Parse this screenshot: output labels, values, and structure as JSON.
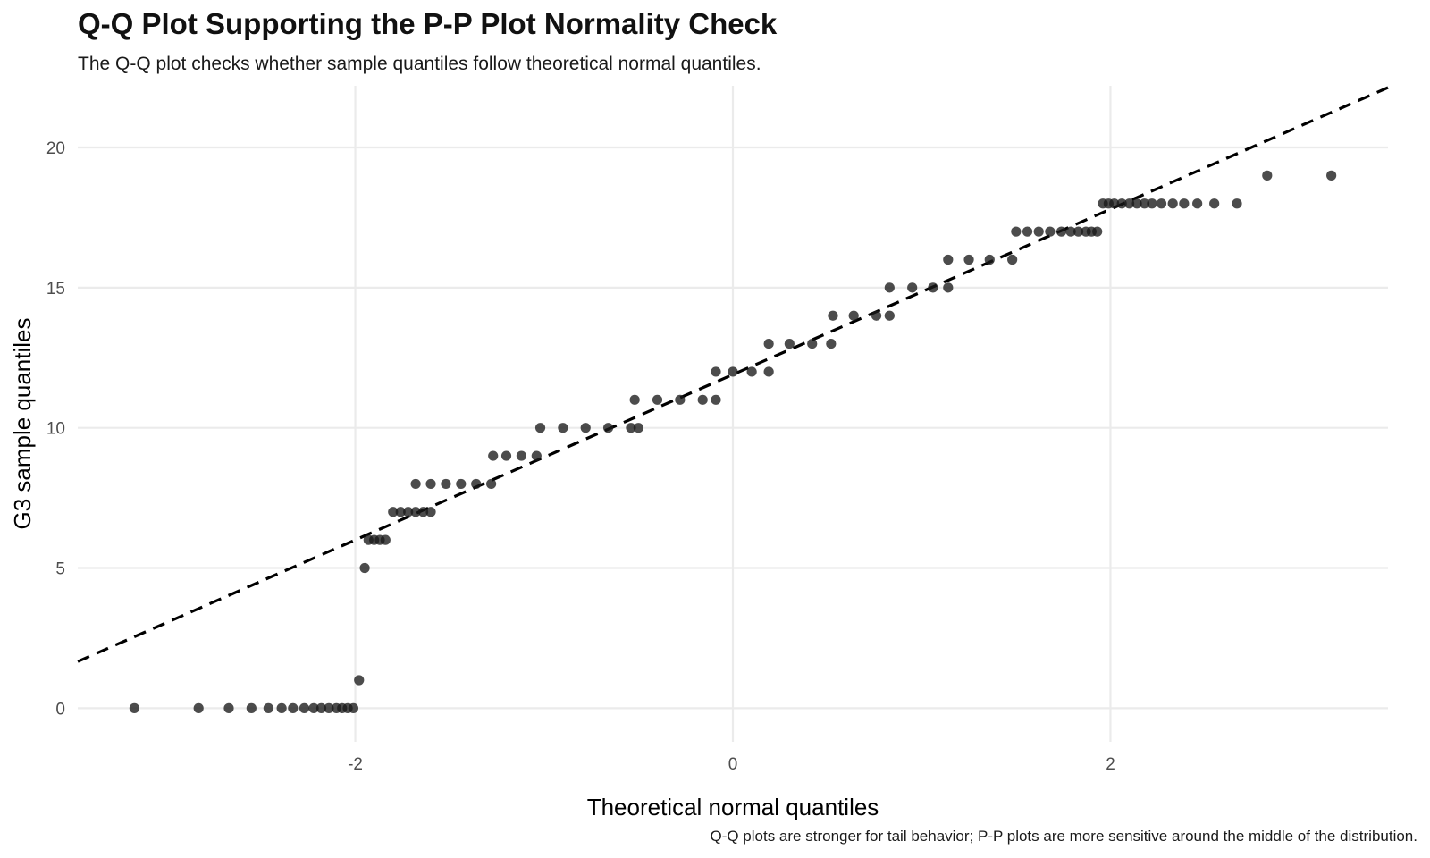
{
  "chart_data": {
    "type": "scatter",
    "title": "Q-Q Plot Supporting the P-P Plot Normality Check",
    "subtitle": "The Q-Q plot checks whether sample quantiles follow theoretical normal quantiles.",
    "caption": "Q-Q plots are stronger for tail behavior; P-P plots are more sensitive around the middle of the distribution.",
    "xlabel": "Theoretical normal quantiles",
    "ylabel": "G3 sample quantiles",
    "xlim": [
      -3.47,
      3.47
    ],
    "ylim": [
      -1.2,
      22.2
    ],
    "x_ticks": [
      -2,
      0,
      2
    ],
    "x_tick_labels": [
      "-2",
      "0",
      "2"
    ],
    "y_ticks": [
      0,
      5,
      10,
      15,
      20
    ],
    "y_tick_labels": [
      "0",
      "5",
      "10",
      "15",
      "20"
    ],
    "grid": true,
    "reference_line": {
      "intercept": 11.9,
      "slope": 2.95,
      "style": "dashed",
      "color": "#000000"
    },
    "point_color": "#1a1a1a",
    "points": [
      {
        "x": -3.17,
        "y": 0
      },
      {
        "x": -2.83,
        "y": 0
      },
      {
        "x": -2.67,
        "y": 0
      },
      {
        "x": -2.55,
        "y": 0
      },
      {
        "x": -2.46,
        "y": 0
      },
      {
        "x": -2.39,
        "y": 0
      },
      {
        "x": -2.33,
        "y": 0
      },
      {
        "x": -2.27,
        "y": 0
      },
      {
        "x": -2.22,
        "y": 0
      },
      {
        "x": -2.18,
        "y": 0
      },
      {
        "x": -2.14,
        "y": 0
      },
      {
        "x": -2.1,
        "y": 0
      },
      {
        "x": -2.07,
        "y": 0
      },
      {
        "x": -2.04,
        "y": 0
      },
      {
        "x": -2.01,
        "y": 0
      },
      {
        "x": -1.98,
        "y": 1
      },
      {
        "x": -1.95,
        "y": 5
      },
      {
        "x": -1.93,
        "y": 6
      },
      {
        "x": -1.9,
        "y": 6
      },
      {
        "x": -1.87,
        "y": 6
      },
      {
        "x": -1.84,
        "y": 6
      },
      {
        "x": -1.8,
        "y": 7
      },
      {
        "x": -1.76,
        "y": 7
      },
      {
        "x": -1.72,
        "y": 7
      },
      {
        "x": -1.68,
        "y": 7
      },
      {
        "x": -1.64,
        "y": 7
      },
      {
        "x": -1.6,
        "y": 7
      },
      {
        "x": -1.68,
        "y": 8
      },
      {
        "x": -1.6,
        "y": 8
      },
      {
        "x": -1.52,
        "y": 8
      },
      {
        "x": -1.44,
        "y": 8
      },
      {
        "x": -1.36,
        "y": 8
      },
      {
        "x": -1.28,
        "y": 8
      },
      {
        "x": -1.27,
        "y": 9
      },
      {
        "x": -1.2,
        "y": 9
      },
      {
        "x": -1.12,
        "y": 9
      },
      {
        "x": -1.04,
        "y": 9
      },
      {
        "x": -1.02,
        "y": 10
      },
      {
        "x": -0.9,
        "y": 10
      },
      {
        "x": -0.78,
        "y": 10
      },
      {
        "x": -0.66,
        "y": 10
      },
      {
        "x": -0.54,
        "y": 10
      },
      {
        "x": -0.5,
        "y": 10
      },
      {
        "x": -0.52,
        "y": 11
      },
      {
        "x": -0.4,
        "y": 11
      },
      {
        "x": -0.28,
        "y": 11
      },
      {
        "x": -0.16,
        "y": 11
      },
      {
        "x": -0.09,
        "y": 11
      },
      {
        "x": -0.09,
        "y": 12
      },
      {
        "x": 0.0,
        "y": 12
      },
      {
        "x": 0.1,
        "y": 12
      },
      {
        "x": 0.19,
        "y": 12
      },
      {
        "x": 0.19,
        "y": 13
      },
      {
        "x": 0.3,
        "y": 13
      },
      {
        "x": 0.42,
        "y": 13
      },
      {
        "x": 0.52,
        "y": 13
      },
      {
        "x": 0.53,
        "y": 14
      },
      {
        "x": 0.64,
        "y": 14
      },
      {
        "x": 0.76,
        "y": 14
      },
      {
        "x": 0.83,
        "y": 14
      },
      {
        "x": 0.83,
        "y": 15
      },
      {
        "x": 0.95,
        "y": 15
      },
      {
        "x": 1.06,
        "y": 15
      },
      {
        "x": 1.14,
        "y": 15
      },
      {
        "x": 1.14,
        "y": 16
      },
      {
        "x": 1.25,
        "y": 16
      },
      {
        "x": 1.36,
        "y": 16
      },
      {
        "x": 1.48,
        "y": 16
      },
      {
        "x": 1.5,
        "y": 17
      },
      {
        "x": 1.56,
        "y": 17
      },
      {
        "x": 1.62,
        "y": 17
      },
      {
        "x": 1.68,
        "y": 17
      },
      {
        "x": 1.74,
        "y": 17
      },
      {
        "x": 1.79,
        "y": 17
      },
      {
        "x": 1.83,
        "y": 17
      },
      {
        "x": 1.87,
        "y": 17
      },
      {
        "x": 1.9,
        "y": 17
      },
      {
        "x": 1.93,
        "y": 17
      },
      {
        "x": 1.96,
        "y": 18
      },
      {
        "x": 1.99,
        "y": 18
      },
      {
        "x": 2.02,
        "y": 18
      },
      {
        "x": 2.06,
        "y": 18
      },
      {
        "x": 2.1,
        "y": 18
      },
      {
        "x": 2.14,
        "y": 18
      },
      {
        "x": 2.18,
        "y": 18
      },
      {
        "x": 2.22,
        "y": 18
      },
      {
        "x": 2.27,
        "y": 18
      },
      {
        "x": 2.33,
        "y": 18
      },
      {
        "x": 2.39,
        "y": 18
      },
      {
        "x": 2.46,
        "y": 18
      },
      {
        "x": 2.55,
        "y": 18
      },
      {
        "x": 2.67,
        "y": 18
      },
      {
        "x": 2.83,
        "y": 19
      },
      {
        "x": 3.17,
        "y": 19
      }
    ]
  }
}
